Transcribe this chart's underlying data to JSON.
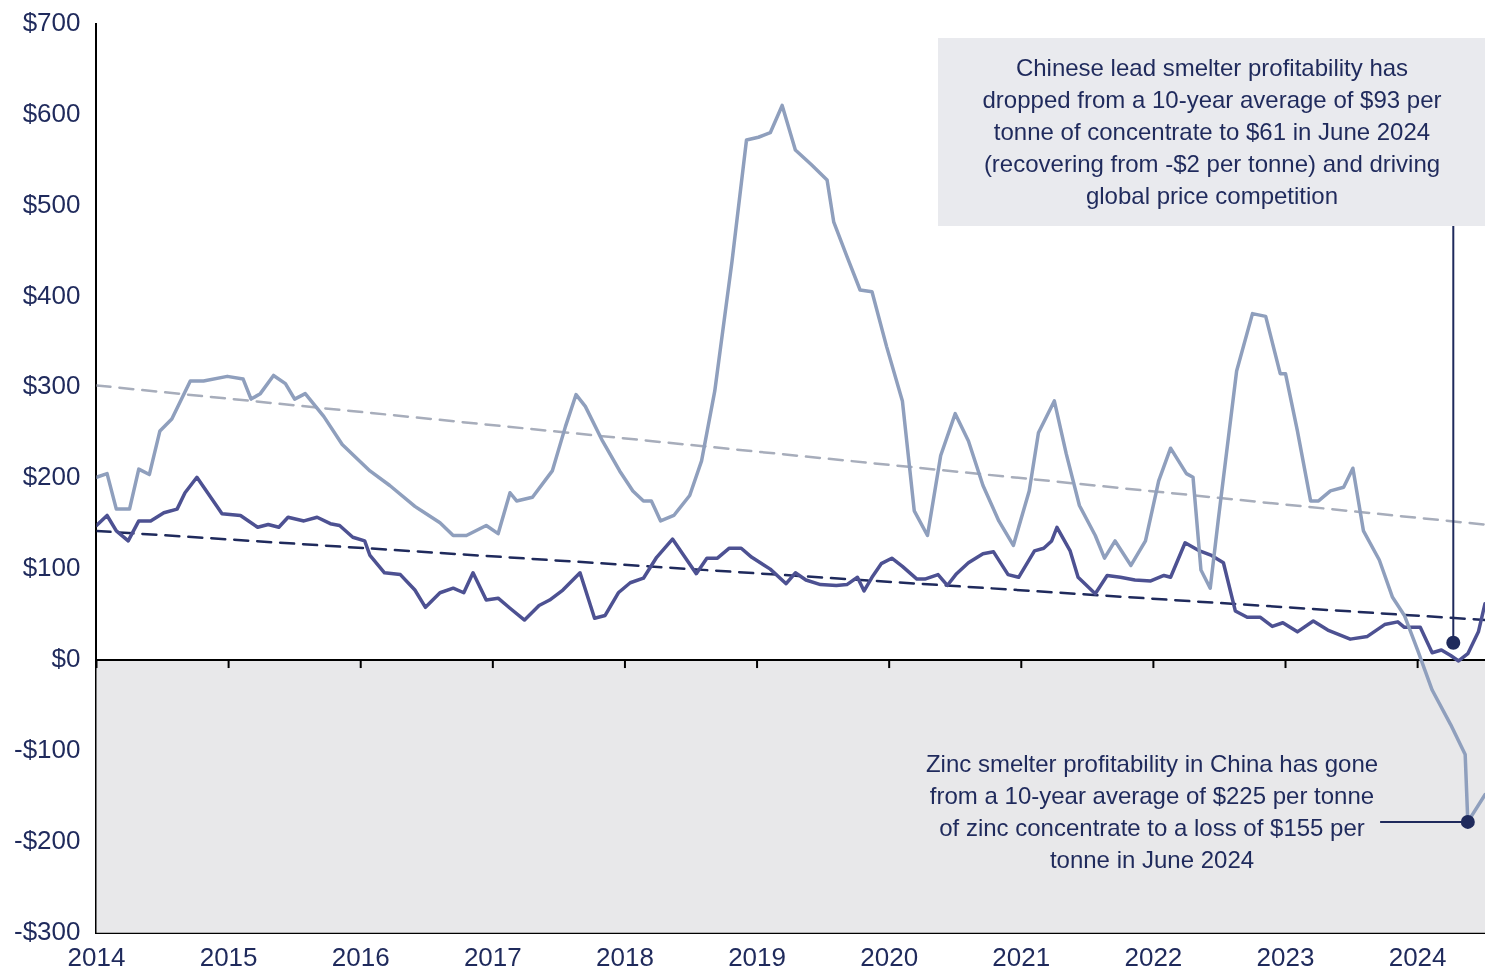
{
  "chart_data": {
    "type": "line",
    "xlim": [
      2014,
      2024.51
    ],
    "xticks": [
      2014,
      2015,
      2016,
      2017,
      2018,
      2019,
      2020,
      2021,
      2022,
      2023,
      2024
    ],
    "ylim": [
      -300,
      700
    ],
    "yticks": [
      {
        "value": -300,
        "label": "-$300"
      },
      {
        "value": -200,
        "label": "-$200"
      },
      {
        "value": -100,
        "label": "-$100"
      },
      {
        "value": 0,
        "label": "$0"
      },
      {
        "value": 100,
        "label": "$100"
      },
      {
        "value": 200,
        "label": "$200"
      },
      {
        "value": 300,
        "label": "$300"
      },
      {
        "value": 400,
        "label": "$400"
      },
      {
        "value": 500,
        "label": "$500"
      },
      {
        "value": 600,
        "label": "$600"
      },
      {
        "value": 700,
        "label": "$700"
      }
    ],
    "series": [
      {
        "color": "#8f9fbd",
        "x": [
          2014.0,
          2014.08,
          2014.15,
          2014.25,
          2014.32,
          2014.4,
          2014.48,
          2014.57,
          2014.71,
          2014.81,
          2014.99,
          2015.11,
          2015.17,
          2015.24,
          2015.34,
          2015.43,
          2015.5,
          2015.58,
          2015.72,
          2015.86,
          2016.07,
          2016.22,
          2016.41,
          2016.6,
          2016.7,
          2016.8,
          2016.95,
          2017.04,
          2017.13,
          2017.18,
          2017.3,
          2017.45,
          2017.55,
          2017.63,
          2017.7,
          2017.83,
          2017.96,
          2018.06,
          2018.14,
          2018.2,
          2018.27,
          2018.37,
          2018.49,
          2018.58,
          2018.68,
          2018.81,
          2018.92,
          2019.01,
          2019.1,
          2019.19,
          2019.29,
          2019.41,
          2019.53,
          2019.58,
          2019.68,
          2019.78,
          2019.87,
          2019.98,
          2020.1,
          2020.19,
          2020.29,
          2020.39,
          2020.5,
          2020.6,
          2020.71,
          2020.83,
          2020.94,
          2021.06,
          2021.13,
          2021.25,
          2021.34,
          2021.44,
          2021.56,
          2021.63,
          2021.71,
          2021.83,
          2021.94,
          2022.04,
          2022.13,
          2022.25,
          2022.3,
          2022.36,
          2022.43,
          2022.49,
          2022.63,
          2022.75,
          2022.85,
          2022.96,
          2023.0,
          2023.09,
          2023.19,
          2023.25,
          2023.34,
          2023.44,
          2023.51,
          2023.59,
          2023.71,
          2023.81,
          2023.9,
          2024.0,
          2024.11,
          2024.25,
          2024.36,
          2024.38,
          2024.51
        ],
        "values": [
          201,
          205,
          166,
          166,
          210,
          204,
          252,
          265,
          307,
          307,
          312,
          309,
          287,
          293,
          313,
          304,
          287,
          293,
          268,
          237,
          208,
          192,
          169,
          151,
          137,
          137,
          148,
          139,
          184,
          175,
          179,
          208,
          257,
          292,
          279,
          241,
          208,
          186,
          175,
          175,
          153,
          159,
          181,
          219,
          296,
          438,
          572,
          575,
          580,
          610,
          561,
          545,
          528,
          482,
          444,
          407,
          405,
          345,
          285,
          164,
          137,
          225,
          271,
          241,
          192,
          153,
          126,
          186,
          250,
          285,
          227,
          170,
          137,
          112,
          131,
          104,
          131,
          197,
          233,
          205,
          201,
          99,
          79,
          153,
          318,
          381,
          378,
          315,
          315,
          252,
          175,
          175,
          186,
          190,
          211,
          142,
          110,
          69,
          49,
          11,
          -33,
          -71,
          -104,
          -178,
          -148
        ]
      },
      {
        "color": "#4d5192",
        "x": [
          2014.0,
          2014.08,
          2014.15,
          2014.24,
          2014.32,
          2014.41,
          2014.51,
          2014.61,
          2014.67,
          2014.76,
          2014.95,
          2015.09,
          2015.22,
          2015.3,
          2015.38,
          2015.45,
          2015.57,
          2015.67,
          2015.77,
          2015.84,
          2015.94,
          2016.03,
          2016.07,
          2016.18,
          2016.3,
          2016.41,
          2016.49,
          2016.6,
          2016.7,
          2016.78,
          2016.85,
          2016.95,
          2017.04,
          2017.13,
          2017.24,
          2017.35,
          2017.43,
          2017.53,
          2017.66,
          2017.77,
          2017.85,
          2017.95,
          2018.04,
          2018.14,
          2018.24,
          2018.36,
          2018.54,
          2018.62,
          2018.7,
          2018.79,
          2018.88,
          2018.96,
          2019.1,
          2019.22,
          2019.29,
          2019.37,
          2019.48,
          2019.6,
          2019.68,
          2019.76,
          2019.81,
          2019.87,
          2019.94,
          2020.02,
          2020.1,
          2020.21,
          2020.27,
          2020.37,
          2020.44,
          2020.51,
          2020.6,
          2020.71,
          2020.79,
          2020.9,
          2020.98,
          2021.1,
          2021.17,
          2021.23,
          2021.27,
          2021.37,
          2021.43,
          2021.56,
          2021.65,
          2021.75,
          2021.86,
          2021.98,
          2022.08,
          2022.13,
          2022.24,
          2022.35,
          2022.44,
          2022.53,
          2022.62,
          2022.71,
          2022.81,
          2022.9,
          2022.98,
          2023.09,
          2023.21,
          2023.32,
          2023.49,
          2023.62,
          2023.75,
          2023.85,
          2023.9,
          2024.02,
          2024.11,
          2024.18,
          2024.25,
          2024.31,
          2024.38,
          2024.46,
          2024.51
        ],
        "values": [
          148,
          159,
          142,
          131,
          153,
          153,
          162,
          166,
          184,
          201,
          161,
          159,
          146,
          149,
          146,
          157,
          153,
          157,
          150,
          148,
          135,
          131,
          115,
          96,
          94,
          77,
          58,
          74,
          79,
          74,
          96,
          66,
          68,
          57,
          44,
          60,
          66,
          77,
          96,
          46,
          49,
          74,
          85,
          90,
          113,
          133,
          95,
          112,
          112,
          123,
          123,
          113,
          100,
          84,
          96,
          88,
          83,
          82,
          83,
          91,
          76,
          91,
          106,
          112,
          103,
          89,
          89,
          94,
          82,
          95,
          107,
          117,
          119,
          94,
          91,
          120,
          123,
          131,
          146,
          120,
          91,
          73,
          93,
          91,
          88,
          87,
          93,
          91,
          129,
          120,
          115,
          107,
          54,
          47,
          47,
          37,
          41,
          31,
          43,
          33,
          23,
          26,
          39,
          42,
          36,
          36,
          8,
          11,
          5,
          -1,
          7,
          31,
          62
        ]
      },
      {
        "type": "line",
        "line_style": "dashed",
        "color": "#a7adbb",
        "x": [
          2014,
          2024.51
        ],
        "values": [
          302,
          149
        ]
      },
      {
        "type": "line",
        "line_style": "dashed",
        "color": "#1f2a5c",
        "x": [
          2014,
          2024.51
        ],
        "values": [
          142,
          44
        ]
      }
    ],
    "bands": [
      {
        "axis": "y",
        "from": -300,
        "to": 0,
        "color": "#e8e8ea"
      }
    ],
    "ref_lines": [
      {
        "axis": "y",
        "value": 0,
        "color": "#000000"
      }
    ],
    "annotations": [
      {
        "text": "Chinese lead smelter profitability has dropped from a 10-year average of $93 per tonne of concentrate to $61 in June 2024 (recovering from -$2 per tonne) and driving global price competition",
        "x": 2024.27,
        "y": 19
      },
      "Zinc smelter profitability in China has gone from a 10-year average of $225 per tonne of zinc concentrate to a loss of $155 per tonne in June 2024"
    ]
  }
}
